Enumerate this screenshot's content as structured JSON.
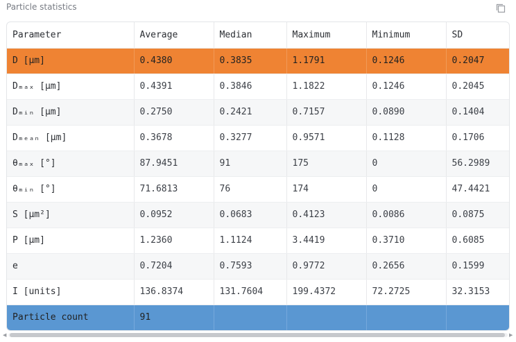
{
  "panel": {
    "title": "Particle statistics"
  },
  "icons": {
    "copy": "copy-icon"
  },
  "table": {
    "headers": [
      "Parameter",
      "Average",
      "Median",
      "Maximum",
      "Minimum",
      "SD"
    ],
    "rows": [
      [
        "D [μm]",
        "0.4380",
        "0.3835",
        "1.1791",
        "0.1246",
        "0.2047"
      ],
      [
        "Dₘₐₓ [μm]",
        "0.4391",
        "0.3846",
        "1.1822",
        "0.1246",
        "0.2045"
      ],
      [
        "Dₘᵢₙ [μm]",
        "0.2750",
        "0.2421",
        "0.7157",
        "0.0890",
        "0.1404"
      ],
      [
        "Dₘₑₐₙ [μm]",
        "0.3678",
        "0.3277",
        "0.9571",
        "0.1128",
        "0.1706"
      ],
      [
        "θₘₐₓ [°]",
        "87.9451",
        "91",
        "175",
        "0",
        "56.2989"
      ],
      [
        "θₘᵢₙ [°]",
        "71.6813",
        "76",
        "174",
        "0",
        "47.4421"
      ],
      [
        "S [μm²]",
        "0.0952",
        "0.0683",
        "0.4123",
        "0.0086",
        "0.0875"
      ],
      [
        "P [μm]",
        "1.2360",
        "1.1124",
        "3.4419",
        "0.3710",
        "0.6085"
      ],
      [
        "e",
        "0.7204",
        "0.7593",
        "0.9772",
        "0.2656",
        "0.1599"
      ],
      [
        "I [units]",
        "136.8374",
        "131.7604",
        "199.4372",
        "72.2725",
        "32.3153"
      ]
    ],
    "footer": [
      "Particle count",
      "91",
      "",
      "",
      "",
      ""
    ]
  },
  "colors": {
    "highlight_row": "#ef8333",
    "footer_row": "#5a97d2"
  }
}
